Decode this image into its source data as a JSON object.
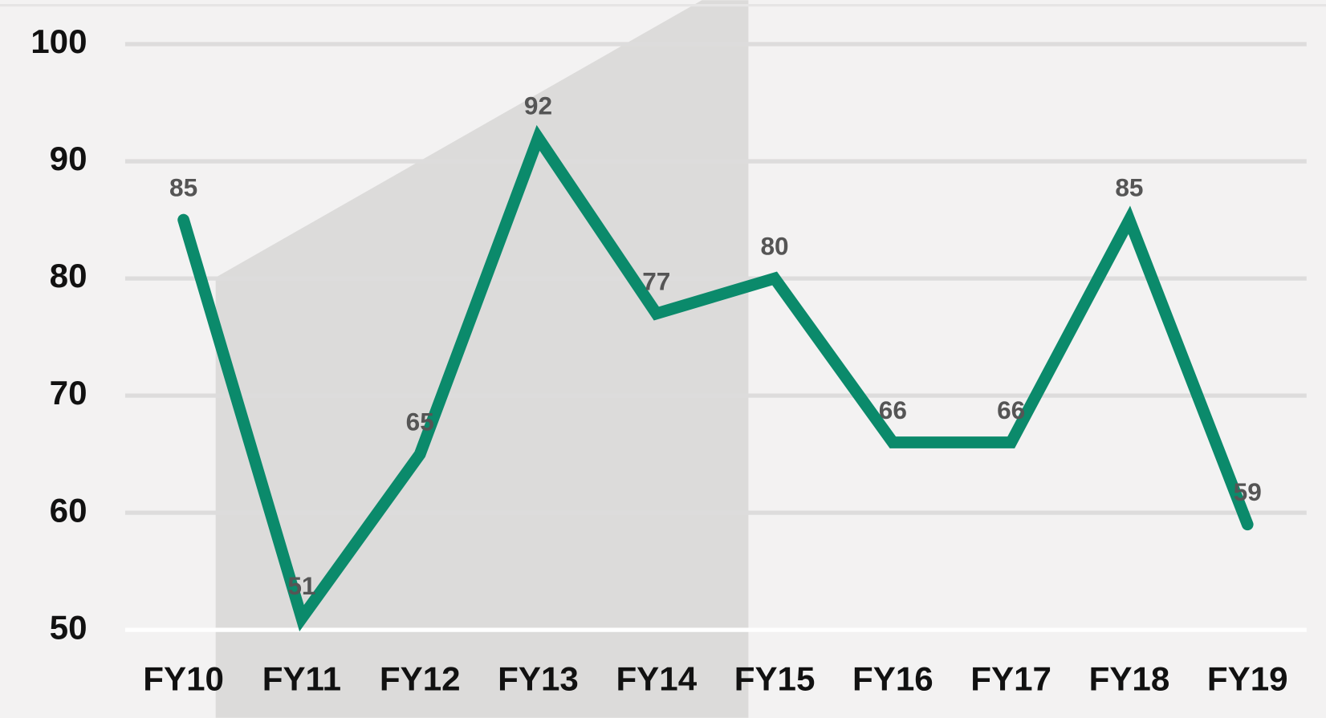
{
  "chart_data": {
    "type": "line",
    "categories": [
      "FY10",
      "FY11",
      "FY12",
      "FY13",
      "FY14",
      "FY15",
      "FY16",
      "FY17",
      "FY18",
      "FY19"
    ],
    "series": [
      {
        "color": "#0b8a6b",
        "values": [
          85,
          51,
          65,
          92,
          77,
          80,
          66,
          66,
          85,
          59
        ]
      }
    ],
    "ylim": [
      50,
      100
    ],
    "yticks": [
      50,
      60,
      70,
      80,
      90,
      100
    ],
    "grid": true
  }
}
